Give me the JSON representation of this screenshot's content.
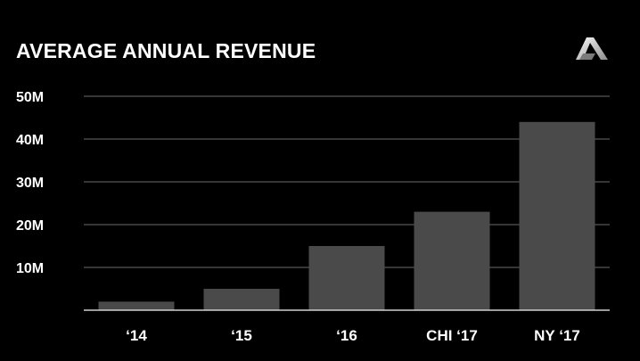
{
  "chart_data": {
    "type": "bar",
    "title": "AVERAGE ANNUAL REVENUE",
    "categories": [
      "‘14",
      "‘15",
      "‘16",
      "CHI ‘17",
      "NY ‘17"
    ],
    "values": [
      2,
      5,
      15,
      23,
      44
    ],
    "yticks": [
      "10M",
      "20M",
      "30M",
      "40M",
      "50M"
    ],
    "ytick_values": [
      10,
      20,
      30,
      40,
      50
    ],
    "ylim": [
      0,
      50
    ],
    "xlabel": "",
    "ylabel": "",
    "grid": true,
    "legend": "none",
    "colors": {
      "background": "#000000",
      "bar": "#4a4a4a",
      "grid": "#6a6a6a",
      "axis": "#cfcfcf",
      "text": "#ffffff"
    }
  },
  "logo": {
    "icon": "triangle-a-logo-icon"
  }
}
